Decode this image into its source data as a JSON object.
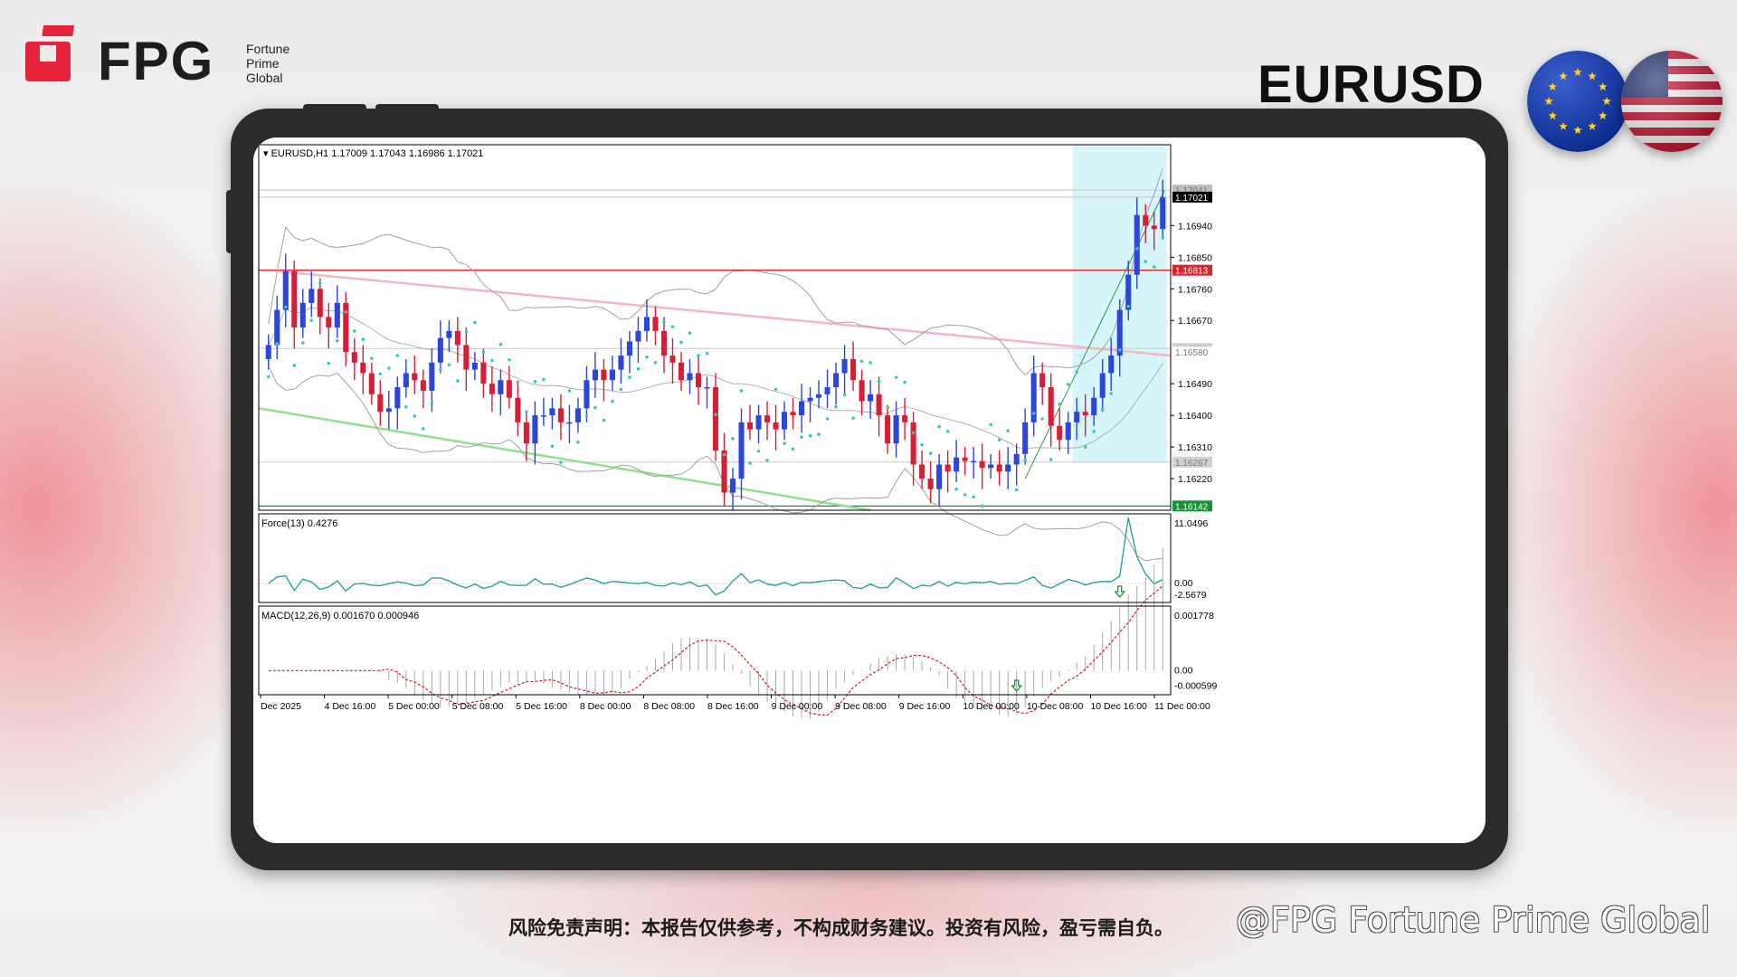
{
  "brand": {
    "name": "FPG",
    "subtitle": [
      "Fortune",
      "Prime",
      "Global"
    ],
    "color": "#e6233a"
  },
  "pair": "EURUSD",
  "flags": [
    "eu-flag",
    "us-flag"
  ],
  "disclaimer": "风险免责声明：本报告仅供参考，不构成财务建议。投资有风险，盈亏需自负。",
  "watermark": "@FPG Fortune Prime Global",
  "chart_data": {
    "type": "candlestick",
    "symbol_header": "EURUSD,H1  1.17009 1.17043 1.16986 1.17021",
    "ylim": [
      1.1613,
      1.1717
    ],
    "y_ticks": [
      1.1694,
      1.1685,
      1.1676,
      1.1667,
      1.1649,
      1.164,
      1.1631,
      1.1622
    ],
    "y_tick_labels": [
      "1.16940",
      "1.16850",
      "1.16760",
      "1.16670",
      "1.16490",
      "1.16400",
      "1.16310",
      "1.16220"
    ],
    "price_tags": [
      {
        "label": "1.17041",
        "value": 1.17041,
        "color": "#bdbdbd"
      },
      {
        "label": "1.17021",
        "value": 1.17021,
        "color": "#000000"
      },
      {
        "label": "1.16813",
        "value": 1.16813,
        "color": "#e0202a"
      },
      {
        "label": "1.16590",
        "value": 1.1659,
        "color": "#d0d0d0"
      },
      {
        "label": "1.16580",
        "value": 1.1658,
        "color": "#ffffff"
      },
      {
        "label": "1.16267",
        "value": 1.16267,
        "color": "#d0d0d0"
      },
      {
        "label": "1.16142",
        "value": 1.16142,
        "color": "#1a8f3a"
      }
    ],
    "x_labels": [
      "Dec 2025",
      "4 Dec 16:00",
      "5 Dec 00:00",
      "5 Dec 08:00",
      "5 Dec 16:00",
      "8 Dec 00:00",
      "8 Dec 08:00",
      "8 Dec 16:00",
      "9 Dec 00:00",
      "9 Dec 08:00",
      "9 Dec 16:00",
      "10 Dec 00:00",
      "10 Dec 08:00",
      "10 Dec 16:00",
      "11 Dec 00:00"
    ],
    "closes": [
      1.166,
      1.167,
      1.1681,
      1.1665,
      1.1672,
      1.1676,
      1.1668,
      1.1665,
      1.1672,
      1.1658,
      1.1655,
      1.1652,
      1.1646,
      1.1641,
      1.1642,
      1.1648,
      1.1652,
      1.165,
      1.1647,
      1.1655,
      1.1662,
      1.1664,
      1.166,
      1.1653,
      1.1655,
      1.1649,
      1.1646,
      1.165,
      1.1645,
      1.1638,
      1.1632,
      1.164,
      1.164,
      1.1642,
      1.1638,
      1.1638,
      1.1642,
      1.165,
      1.1653,
      1.165,
      1.1653,
      1.1657,
      1.1661,
      1.1664,
      1.1668,
      1.1664,
      1.1657,
      1.1655,
      1.165,
      1.1652,
      1.1648,
      1.1648,
      1.163,
      1.1618,
      1.1622,
      1.1638,
      1.1636,
      1.164,
      1.1638,
      1.1636,
      1.1641,
      1.164,
      1.1644,
      1.1645,
      1.1646,
      1.1648,
      1.1652,
      1.1656,
      1.165,
      1.1644,
      1.1646,
      1.164,
      1.1632,
      1.164,
      1.1638,
      1.1626,
      1.1622,
      1.1619,
      1.1626,
      1.1624,
      1.1628,
      1.1627,
      1.1627,
      1.1625,
      1.1626,
      1.1624,
      1.1626,
      1.1629,
      1.1638,
      1.1652,
      1.1648,
      1.1637,
      1.1633,
      1.1638,
      1.1641,
      1.164,
      1.1645,
      1.1652,
      1.1657,
      1.167,
      1.168,
      1.1697,
      1.1694,
      1.1693,
      1.1702
    ],
    "force_index": {
      "label": "Force(13) 0.4276",
      "max_label": "11.0496",
      "zero_label": "0.00",
      "min_label": "-2.5679",
      "ylim": [
        -2.5679,
        11.0496
      ]
    },
    "macd": {
      "label": "MACD(12,26,9) 0.001670 0.000946",
      "max_label": "0.001778",
      "zero_label": "0.00",
      "min_label": "-0.000599",
      "ylim": [
        -0.000599,
        0.001778
      ]
    }
  }
}
